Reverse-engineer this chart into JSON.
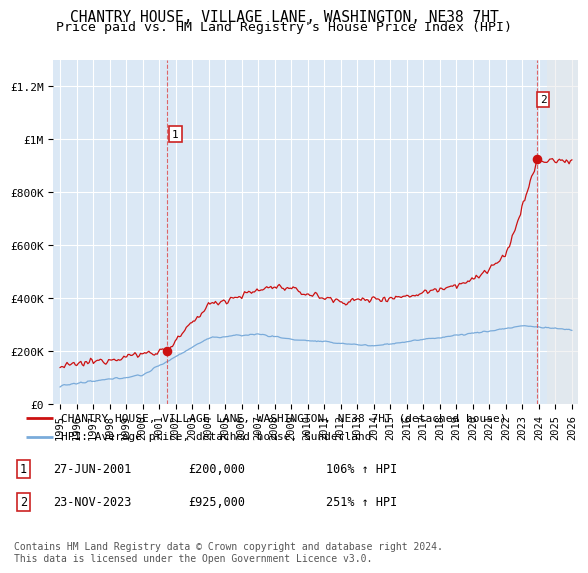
{
  "title": "CHANTRY HOUSE, VILLAGE LANE, WASHINGTON, NE38 7HT",
  "subtitle": "Price paid vs. HM Land Registry's House Price Index (HPI)",
  "ylim": [
    0,
    1300000
  ],
  "yticks": [
    0,
    200000,
    400000,
    600000,
    800000,
    1000000,
    1200000
  ],
  "ytick_labels": [
    "£0",
    "£200K",
    "£400K",
    "£600K",
    "£800K",
    "£1M",
    "£1.2M"
  ],
  "xlim_left": 1994.6,
  "xlim_right": 2026.4,
  "background_color": "#dbe8f5",
  "grid_color": "#ffffff",
  "line_color_red": "#cc1111",
  "line_color_blue": "#7aabda",
  "transaction1_year": 2001.49,
  "transaction1_price": 200000,
  "transaction2_year": 2023.9,
  "transaction2_price": 925000,
  "hatch_start_year": 2024.5,
  "legend_line1": "CHANTRY HOUSE, VILLAGE LANE, WASHINGTON, NE38 7HT (detached house)",
  "legend_line2": "HPI: Average price, detached house, Sunderland",
  "annotation1_label": "1",
  "annotation1_text": "27-JUN-2001",
  "annotation1_price": "£200,000",
  "annotation1_hpi": "106% ↑ HPI",
  "annotation2_label": "2",
  "annotation2_text": "23-NOV-2023",
  "annotation2_price": "£925,000",
  "annotation2_hpi": "251% ↑ HPI",
  "footer": "Contains HM Land Registry data © Crown copyright and database right 2024.\nThis data is licensed under the Open Government Licence v3.0.",
  "title_fontsize": 10.5,
  "subtitle_fontsize": 9.5,
  "tick_fontsize": 8,
  "legend_fontsize": 8,
  "table_fontsize": 8.5,
  "footer_fontsize": 7
}
